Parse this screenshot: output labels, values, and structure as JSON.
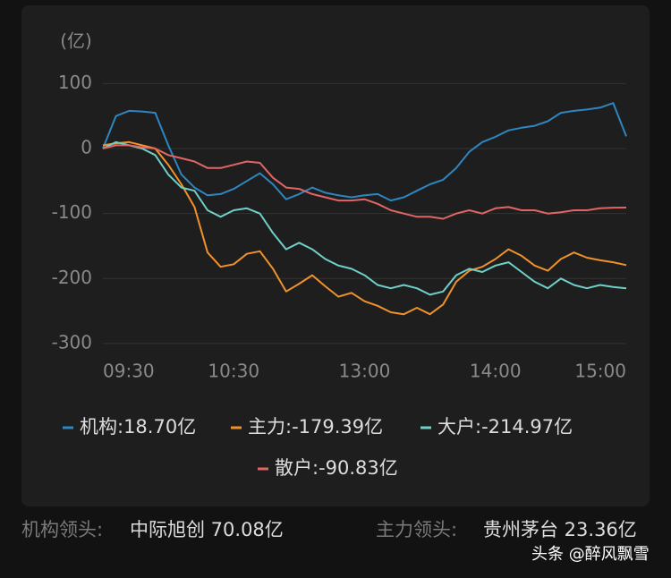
{
  "chart_data": {
    "type": "line",
    "y_label": "(亿)",
    "x": [
      0,
      6,
      12,
      18,
      24,
      30,
      36,
      42,
      48,
      54,
      60,
      66,
      72,
      78,
      84,
      90,
      96,
      102,
      108,
      114,
      120,
      126,
      132,
      138,
      144,
      150,
      156,
      162,
      168,
      174,
      180,
      186,
      192,
      198,
      204,
      210,
      216,
      222,
      228,
      234,
      240
    ],
    "xlim": [
      0,
      240
    ],
    "xticks": [
      {
        "value": 0,
        "label": "09:30"
      },
      {
        "value": 60,
        "label": "10:30"
      },
      {
        "value": 120,
        "label": "13:00"
      },
      {
        "value": 180,
        "label": "14:00"
      },
      {
        "value": 240,
        "label": "15:00"
      }
    ],
    "ylim": [
      -315,
      115
    ],
    "yticks": [
      100,
      0,
      -100,
      -200,
      -300
    ],
    "grid": true,
    "series": [
      {
        "name": "机构:18.70亿",
        "color": "#2e86c1",
        "values": [
          0,
          50,
          58,
          57,
          55,
          5,
          -40,
          -60,
          -72,
          -70,
          -62,
          -50,
          -38,
          -55,
          -78,
          -70,
          -60,
          -68,
          -72,
          -75,
          -72,
          -70,
          -80,
          -75,
          -65,
          -55,
          -48,
          -30,
          -5,
          10,
          18,
          28,
          32,
          35,
          42,
          55,
          58,
          60,
          63,
          70,
          18.7
        ]
      },
      {
        "name": "主力:-179.39亿",
        "color": "#f0922b",
        "values": [
          5,
          8,
          10,
          5,
          0,
          -25,
          -55,
          -90,
          -160,
          -182,
          -178,
          -162,
          -158,
          -185,
          -220,
          -208,
          -195,
          -212,
          -228,
          -222,
          -235,
          -242,
          -252,
          -255,
          -245,
          -255,
          -240,
          -205,
          -188,
          -182,
          -170,
          -155,
          -165,
          -180,
          -188,
          -170,
          -160,
          -168,
          -172,
          -175,
          -179.39
        ]
      },
      {
        "name": "大户:-214.97亿",
        "color": "#6fd0c8",
        "values": [
          0,
          10,
          5,
          0,
          -10,
          -40,
          -60,
          -65,
          -95,
          -105,
          -95,
          -92,
          -100,
          -130,
          -155,
          -145,
          -155,
          -170,
          -180,
          -185,
          -195,
          -210,
          -215,
          -210,
          -215,
          -225,
          -220,
          -195,
          -185,
          -190,
          -180,
          -175,
          -190,
          -205,
          -215,
          -200,
          -210,
          -215,
          -210,
          -213,
          -214.97
        ]
      },
      {
        "name": "散户:-90.83亿",
        "color": "#e06666",
        "values": [
          0,
          5,
          5,
          2,
          0,
          -10,
          -15,
          -20,
          -30,
          -30,
          -25,
          -20,
          -22,
          -45,
          -60,
          -62,
          -70,
          -75,
          -80,
          -80,
          -78,
          -85,
          -95,
          -100,
          -105,
          -105,
          -108,
          -100,
          -95,
          -100,
          -92,
          -90,
          -95,
          -95,
          -100,
          -98,
          -95,
          -95,
          -92,
          -91,
          -90.83
        ]
      }
    ]
  },
  "footer": {
    "left_label": "机构领头:",
    "left_value": "中际旭创 70.08亿",
    "right_label": "主力领头:",
    "right_value": "贵州茅台 23.36亿",
    "watermark": "头条 @醉风飘雪"
  }
}
